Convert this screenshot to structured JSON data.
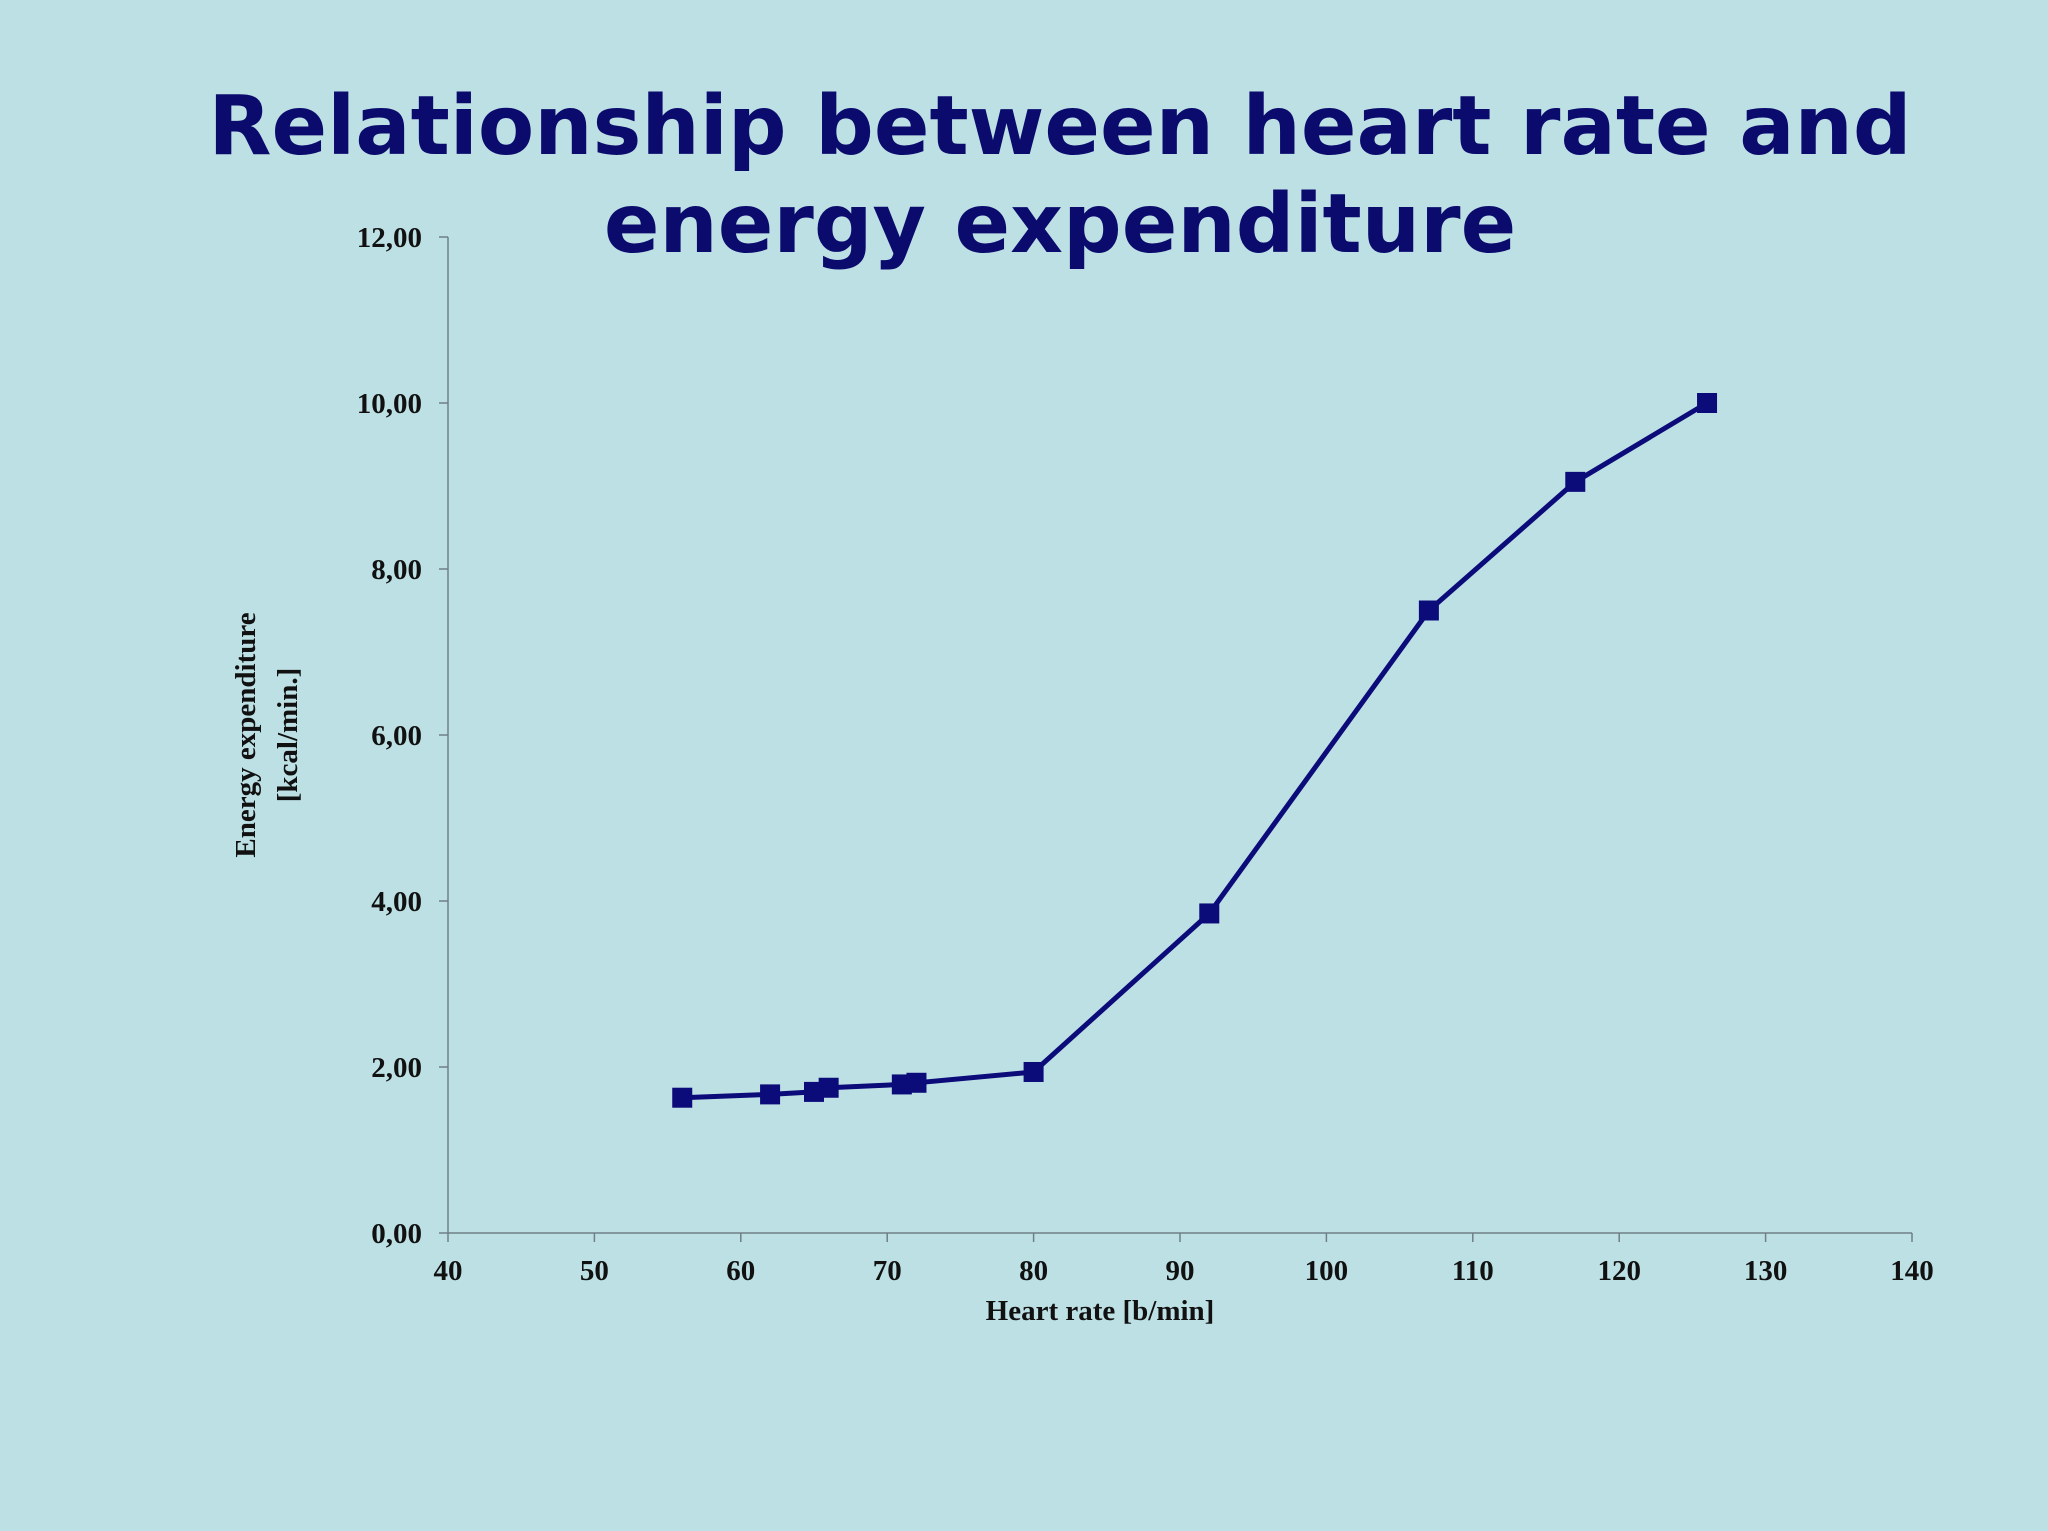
{
  "chart_data": {
    "type": "line",
    "title": "Relationship between heart rate and energy expenditure",
    "xlabel": "Heart rate [b/min]",
    "ylabel_lines": [
      "Energy expenditure",
      "[kcal/min.]"
    ],
    "xlim": [
      40,
      140
    ],
    "ylim": [
      0,
      12
    ],
    "x_ticks": [
      "40",
      "50",
      "60",
      "70",
      "80",
      "90",
      "100",
      "110",
      "120",
      "130",
      "140"
    ],
    "y_ticks": [
      "0,00",
      "2,00",
      "4,00",
      "6,00",
      "8,00",
      "10,00",
      "12,00"
    ],
    "grid": false,
    "legend": false,
    "marker": "square",
    "series_color": "#0b0b7a",
    "series": [
      {
        "x": [
          56,
          62,
          65,
          66,
          71,
          72,
          80,
          92,
          107,
          117,
          126
        ],
        "y": [
          1.63,
          1.67,
          1.7,
          1.75,
          1.79,
          1.81,
          1.94,
          3.85,
          7.5,
          9.05,
          10.0
        ]
      }
    ]
  }
}
